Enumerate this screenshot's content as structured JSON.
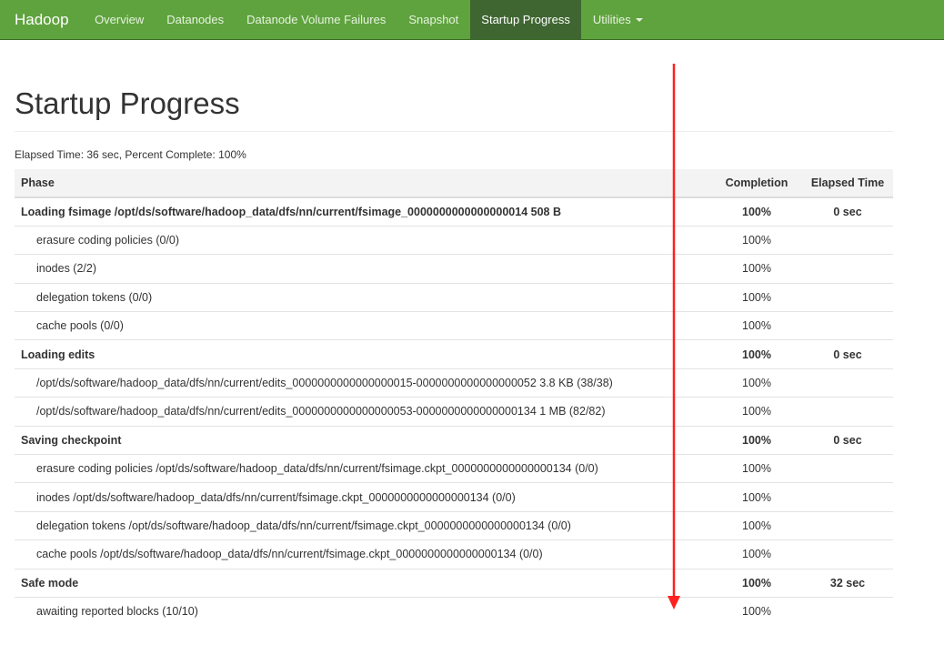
{
  "nav": {
    "brand": "Hadoop",
    "items": [
      {
        "label": "Overview"
      },
      {
        "label": "Datanodes"
      },
      {
        "label": "Datanode Volume Failures"
      },
      {
        "label": "Snapshot"
      },
      {
        "label": "Startup Progress",
        "active": true
      },
      {
        "label": "Utilities"
      }
    ]
  },
  "page": {
    "title": "Startup Progress",
    "summary": "Elapsed Time: 36 sec, Percent Complete: 100%"
  },
  "table": {
    "headers": [
      "Phase",
      "Completion",
      "Elapsed Time"
    ],
    "rows": [
      {
        "type": "phase",
        "name": "Loading fsimage /opt/ds/software/hadoop_data/dfs/nn/current/fsimage_0000000000000000014 508 B",
        "completion": "100%",
        "elapsed": "0 sec"
      },
      {
        "type": "step",
        "name": "erasure coding policies (0/0)",
        "completion": "100%",
        "elapsed": ""
      },
      {
        "type": "step",
        "name": "inodes (2/2)",
        "completion": "100%",
        "elapsed": ""
      },
      {
        "type": "step",
        "name": "delegation tokens (0/0)",
        "completion": "100%",
        "elapsed": ""
      },
      {
        "type": "step",
        "name": "cache pools (0/0)",
        "completion": "100%",
        "elapsed": ""
      },
      {
        "type": "phase",
        "name": "Loading edits",
        "completion": "100%",
        "elapsed": "0 sec"
      },
      {
        "type": "step",
        "name": "/opt/ds/software/hadoop_data/dfs/nn/current/edits_0000000000000000015-0000000000000000052 3.8 KB (38/38)",
        "completion": "100%",
        "elapsed": ""
      },
      {
        "type": "step",
        "name": "/opt/ds/software/hadoop_data/dfs/nn/current/edits_0000000000000000053-0000000000000000134 1 MB (82/82)",
        "completion": "100%",
        "elapsed": ""
      },
      {
        "type": "phase",
        "name": "Saving checkpoint",
        "completion": "100%",
        "elapsed": "0 sec"
      },
      {
        "type": "step",
        "name": "erasure coding policies /opt/ds/software/hadoop_data/dfs/nn/current/fsimage.ckpt_0000000000000000134 (0/0)",
        "completion": "100%",
        "elapsed": ""
      },
      {
        "type": "step",
        "name": "inodes /opt/ds/software/hadoop_data/dfs/nn/current/fsimage.ckpt_0000000000000000134 (0/0)",
        "completion": "100%",
        "elapsed": ""
      },
      {
        "type": "step",
        "name": "delegation tokens /opt/ds/software/hadoop_data/dfs/nn/current/fsimage.ckpt_0000000000000000134 (0/0)",
        "completion": "100%",
        "elapsed": ""
      },
      {
        "type": "step",
        "name": "cache pools /opt/ds/software/hadoop_data/dfs/nn/current/fsimage.ckpt_0000000000000000134 (0/0)",
        "completion": "100%",
        "elapsed": ""
      },
      {
        "type": "phase",
        "name": "Safe mode",
        "completion": "100%",
        "elapsed": "32 sec"
      },
      {
        "type": "step",
        "name": "awaiting reported blocks (10/10)",
        "completion": "100%",
        "elapsed": ""
      }
    ]
  },
  "colors": {
    "navbar": "#5fa33e",
    "nav_active": "#3f6631",
    "annotation_arrow": "#ff2020"
  }
}
